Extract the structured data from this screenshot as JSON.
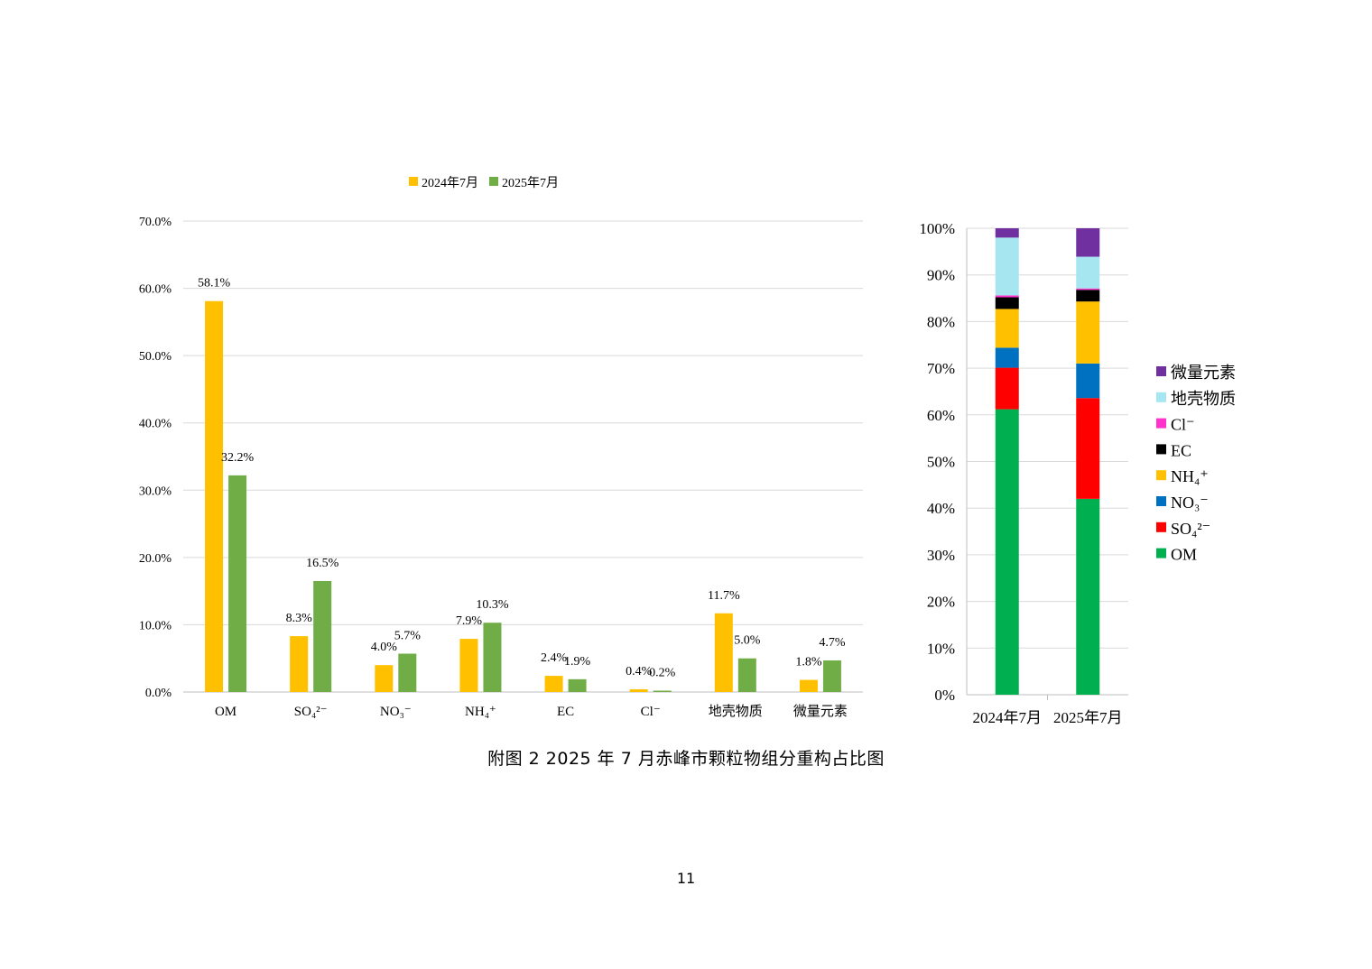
{
  "chart_data": [
    {
      "type": "bar",
      "legend": {
        "placement": "top-center"
      },
      "categories": [
        "OM",
        "SO₄²⁻",
        "NO₃⁻",
        "NH₄⁺",
        "EC",
        "Cl⁻",
        "地壳物质",
        "微量元素"
      ],
      "series": [
        {
          "name": "2024年7月",
          "color": "#FFC000",
          "values": [
            58.1,
            8.3,
            4.0,
            7.9,
            2.4,
            0.4,
            11.7,
            1.8
          ],
          "labels": [
            "58.1%",
            "8.3%",
            "4.0%",
            "7.9%",
            "2.4%",
            "0.4%",
            "11.7%",
            "1.8%"
          ]
        },
        {
          "name": "2025年7月",
          "color": "#70AD47",
          "values": [
            32.2,
            16.5,
            5.7,
            10.3,
            1.9,
            0.2,
            5.0,
            4.7
          ],
          "labels": [
            "32.2%",
            "16.5%",
            "5.7%",
            "10.3%",
            "1.9%",
            "0.2%",
            "5.0%",
            "4.7%"
          ]
        }
      ],
      "ylim": [
        0,
        70
      ],
      "yticks": [
        "0.0%",
        "10.0%",
        "20.0%",
        "30.0%",
        "40.0%",
        "50.0%",
        "60.0%",
        "70.0%"
      ],
      "grid": true
    },
    {
      "type": "bar",
      "stacked": true,
      "legend": {
        "placement": "right"
      },
      "categories": [
        "2024年7月",
        "2025年7月"
      ],
      "series": [
        {
          "name": "OM",
          "color": "#00B050",
          "values": [
            61.2,
            42.0
          ]
        },
        {
          "name": "SO₄²⁻",
          "color": "#FF0000",
          "values": [
            8.9,
            21.6
          ]
        },
        {
          "name": "NO₃⁻",
          "color": "#0070C0",
          "values": [
            4.3,
            7.4
          ]
        },
        {
          "name": "NH₄⁺",
          "color": "#FFC000",
          "values": [
            8.3,
            13.3
          ]
        },
        {
          "name": "EC",
          "color": "#000000",
          "values": [
            2.5,
            2.5
          ]
        },
        {
          "name": "Cl⁻",
          "color": "#FF33CC",
          "values": [
            0.4,
            0.3
          ]
        },
        {
          "name": "地壳物质",
          "color": "#A6E6F0",
          "values": [
            12.4,
            6.8
          ]
        },
        {
          "name": "微量元素",
          "color": "#7030A0",
          "values": [
            2.0,
            6.1
          ]
        }
      ],
      "ylim": [
        0,
        100
      ],
      "yticks": [
        "0%",
        "10%",
        "20%",
        "30%",
        "40%",
        "50%",
        "60%",
        "70%",
        "80%",
        "90%",
        "100%"
      ],
      "grid": true
    }
  ],
  "caption": "附图 2   2025 年 7 月赤峰市颗粒物组分重构占比图",
  "page_number": "11"
}
